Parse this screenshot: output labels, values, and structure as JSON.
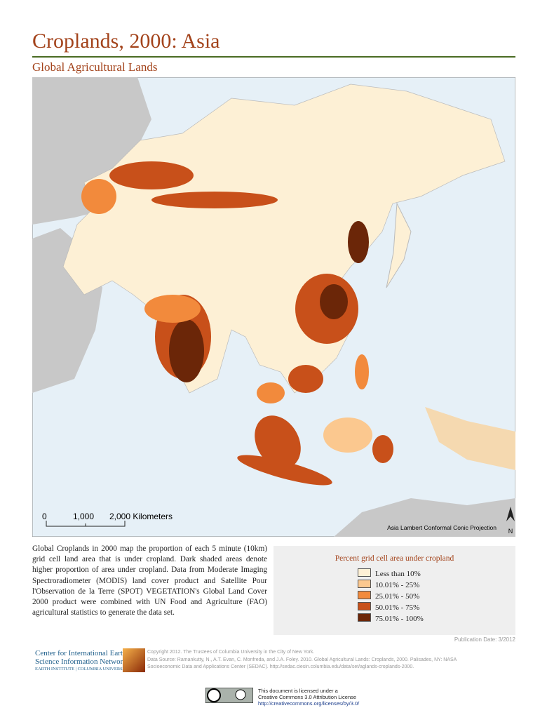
{
  "header": {
    "title": "Croplands, 2000: Asia",
    "subtitle": "Global Agricultural Lands"
  },
  "map": {
    "scale_labels": [
      "0",
      "1,000",
      "2,000 Kilometers"
    ],
    "projection": "Asia Lambert Conformal Conic Projection",
    "north": "N"
  },
  "description": "Global Croplands in 2000 map the proportion of each 5 minute (10km) grid cell land area that is under cropland. Dark shaded areas denote higher proportion of area under cropland. Data from Moderate Imaging Spectroradiometer (MODIS) land cover product and Satellite Pour l'Observation de la Terre (SPOT) VEGETATION's Global Land Cover 2000 product were combined with UN Food and Agriculture (FAO) agricultural statistics to generate the data set.",
  "legend": {
    "title": "Percent grid cell area under cropland",
    "items": [
      {
        "label": "Less than 10%",
        "color": "#fdf0d5"
      },
      {
        "label": "10.01% - 25%",
        "color": "#fbc88f"
      },
      {
        "label": "25.01% - 50%",
        "color": "#f28a3c"
      },
      {
        "label": "50.01% - 75%",
        "color": "#c8501a"
      },
      {
        "label": "75.01% - 100%",
        "color": "#6b2608"
      }
    ]
  },
  "publication_date": "Publication Date: 3/2012",
  "footer": {
    "org": [
      "Center for International Earth",
      "Science Information Network",
      "EARTH INSTITUTE | COLUMBIA UNIVERSITY"
    ],
    "credits": [
      "Copyright 2012. The Trustees of Columbia University in the City of New York.",
      "Data Source: Ramankutty, N., A.T. Evan, C. Monfreda, and J.A. Foley. 2010. Global Agricultural Lands: Croplands, 2000. Palisades, NY: NASA",
      "Socioeconomic Data and Applications Center (SEDAC). http://sedac.ciesin.columbia.edu/data/set/aglands-croplands-2000."
    ],
    "license": [
      "This document is licensed under a",
      "Creative Commons 3.0 Attribution License",
      "http://creativecommons.org/licenses/by/3.0/"
    ]
  }
}
